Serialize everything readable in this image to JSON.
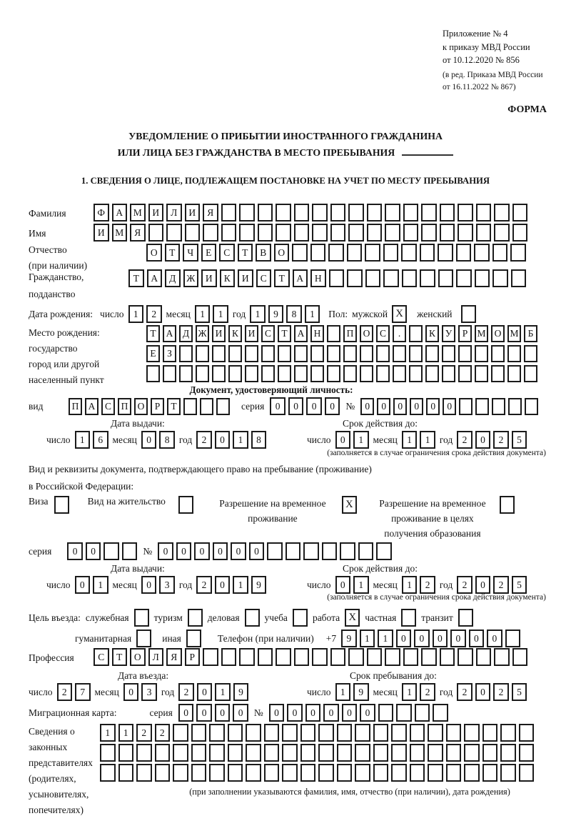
{
  "meta": {
    "appendix": [
      "Приложение № 4",
      "к приказу МВД России",
      "от 10.12.2020 № 856"
    ],
    "edition": [
      "(в ред. Приказа МВД России",
      "от 16.11.2022 № 867)"
    ],
    "form_label": "ФОРМА"
  },
  "title": {
    "line1": "УВЕДОМЛЕНИЕ О ПРИБЫТИИ ИНОСТРАННОГО ГРАЖДАНИНА",
    "line2": "ИЛИ ЛИЦА БЕЗ ГРАЖДАНСТВА В МЕСТО ПРЕБЫВАНИЯ"
  },
  "section1_heading": "1. СВЕДЕНИЯ О ЛИЦЕ, ПОДЛЕЖАЩЕМ ПОСТАНОВКЕ НА УЧЕТ ПО МЕСТУ ПРЕБЫВАНИЯ",
  "date_words": {
    "day": "число",
    "month": "месяц",
    "year": "год"
  },
  "person": {
    "surname": {
      "label": "Фамилия",
      "value": "ФАМИЛИЯ",
      "boxes": 24
    },
    "name": {
      "label": "Имя",
      "value": "ИМЯ",
      "boxes": 24
    },
    "patronymic": {
      "label": "Отчество",
      "label2": "(при наличии)",
      "value": "ОТЧЕСТВО",
      "boxes": 21
    },
    "citizenship": {
      "label": "Гражданство,",
      "label2": "подданство",
      "value": "ТАДЖИКИСТАН",
      "boxes": 22
    },
    "birth_date": {
      "label": "Дата рождения:",
      "day": "12",
      "month": "11",
      "year": "1981"
    },
    "sex": {
      "label": "Пол:",
      "male_label": "мужской",
      "male_checked": "X",
      "female_label": "женский",
      "female_checked": ""
    },
    "birth_place": {
      "label_lines": [
        "Место рождения:",
        "государство",
        "город или другой",
        "населенный пункт"
      ],
      "rows": [
        {
          "value": "ТАДЖИКИСТАН ПОС. КУРМОМБ",
          "boxes": 24
        },
        {
          "value": "ЕЗ",
          "boxes": 24
        },
        {
          "value": "",
          "boxes": 24
        }
      ]
    }
  },
  "identity_doc": {
    "heading": "Документ, удостоверяющий личность:",
    "kind": {
      "label": "вид",
      "value": "ПАСПОРТ",
      "boxes": 10
    },
    "series": {
      "label": "серия",
      "value": "0000",
      "boxes": 4
    },
    "number": {
      "label": "№",
      "value": "000000",
      "boxes": 11
    },
    "issue": {
      "heading": "Дата выдачи:",
      "day": "16",
      "month": "08",
      "year": "2018"
    },
    "valid": {
      "heading": "Срок действия до:",
      "day": "01",
      "month": "11",
      "year": "2025"
    },
    "note": "(заполняется в случае ограничения срока действия документа)"
  },
  "residence_doc": {
    "line1": "Вид и реквизиты документа, подтверждающего право на пребывание (проживание)",
    "line2": "в Российской Федерации:",
    "options": [
      {
        "label": "Виза",
        "checked": ""
      },
      {
        "label": "Вид на жительство",
        "checked": ""
      },
      {
        "label": "Разрешение на временное проживание",
        "checked": "X"
      },
      {
        "label": "Разрешение на временное проживание в целях получения образования",
        "checked": ""
      }
    ],
    "series": {
      "label": "серия",
      "value": "00",
      "boxes": 4
    },
    "number": {
      "label": "№",
      "value": "000000",
      "boxes": 13
    },
    "issue": {
      "heading": "Дата выдачи:",
      "day": "01",
      "month": "03",
      "year": "2019"
    },
    "valid": {
      "heading": "Срок действия до:",
      "day": "01",
      "month": "12",
      "year": "2025"
    },
    "note": "(заполняется в случае ограничения срока действия документа)"
  },
  "visit": {
    "purpose_label": "Цель въезда:",
    "purposes_row1": [
      {
        "label": "служебная",
        "checked": ""
      },
      {
        "label": "туризм",
        "checked": ""
      },
      {
        "label": "деловая",
        "checked": ""
      },
      {
        "label": "учеба",
        "checked": ""
      },
      {
        "label": "работа",
        "checked": "X"
      },
      {
        "label": "частная",
        "checked": ""
      },
      {
        "label": "транзит",
        "checked": ""
      }
    ],
    "purposes_row2": [
      {
        "label": "гуманитарная",
        "checked": ""
      },
      {
        "label": "иная",
        "checked": ""
      }
    ],
    "phone": {
      "label": "Телефон (при наличии)",
      "prefix": "+7",
      "value": "911000000",
      "boxes": 10
    },
    "profession": {
      "label": "Профессия",
      "value": "СТОЛЯР",
      "boxes": 24
    },
    "entry": {
      "heading": "Дата въезда:",
      "day": "27",
      "month": "03",
      "year": "2019"
    },
    "stay": {
      "heading": "Срок пребывания до:",
      "day": "19",
      "month": "12",
      "year": "2025"
    },
    "migration_card": {
      "label": "Миграционная карта:",
      "series_label": "серия",
      "series": {
        "value": "0000",
        "boxes": 4
      },
      "number_label": "№",
      "number": {
        "value": "000000",
        "boxes": 10
      }
    }
  },
  "representatives": {
    "label_lines": [
      "Сведения о",
      "законных",
      "представителях",
      "(родителях,",
      "усыновителях,",
      "попечителях)"
    ],
    "rows": [
      {
        "value": "1122",
        "boxes": 24
      },
      {
        "value": "",
        "boxes": 24
      },
      {
        "value": "",
        "boxes": 24
      }
    ],
    "note": "(при заполнении указываются фамилия, имя, отчество (при наличии), дата рождения)"
  }
}
